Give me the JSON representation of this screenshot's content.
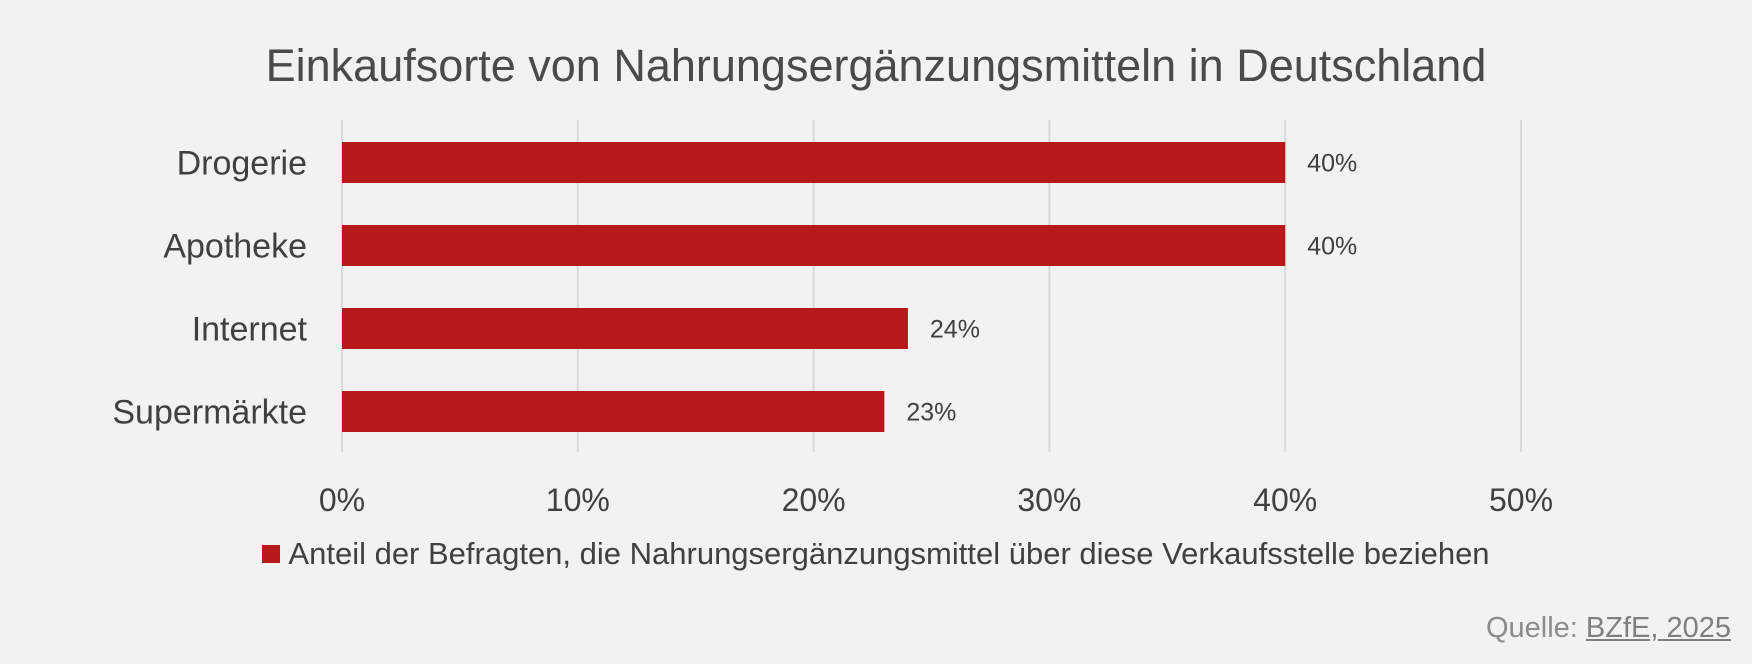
{
  "chart_data": {
    "type": "bar",
    "orientation": "horizontal",
    "title": "Einkaufsorte von Nahrungsergänzungsmitteln in Deutschland",
    "categories": [
      "Drogerie",
      "Apotheke",
      "Internet",
      "Supermärkte"
    ],
    "series": [
      {
        "name": "Anteil der Befragten, die Nahrungsergänzungsmittel über diese Verkaufsstelle beziehen",
        "values": [
          40,
          40,
          24,
          23
        ],
        "labels": [
          "40%",
          "40%",
          "24%",
          "23%"
        ],
        "color": "#b5191a"
      }
    ],
    "xlim": [
      0,
      50
    ],
    "xticks": [
      0,
      10,
      20,
      30,
      40,
      50
    ],
    "xtick_labels": [
      "0%",
      "10%",
      "20%",
      "30%",
      "40%",
      "50%"
    ],
    "grid": true,
    "legend": "bottom"
  },
  "source": {
    "prefix": "Quelle: ",
    "link": "BZfE, 2025"
  }
}
